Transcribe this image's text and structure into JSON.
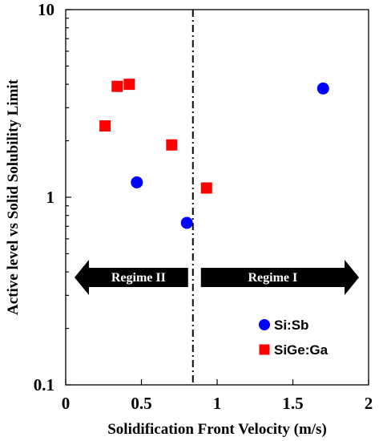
{
  "chart_data": {
    "type": "scatter",
    "xlabel": "Solidification Front Velocity (m/s)",
    "ylabel": "Active level vs Solid Solubility Limit",
    "xlim": [
      0,
      2
    ],
    "ylim": [
      0.1,
      10
    ],
    "yscale": "log",
    "x_ticks": [
      "0",
      "0.5",
      "1",
      "1.5",
      "2"
    ],
    "y_ticks": [
      "0.1",
      "1",
      "10"
    ],
    "grid": false,
    "legend_position": "bottom-right",
    "series": [
      {
        "name": "Si:Sb",
        "marker": "circle",
        "color": "#0000ff",
        "points": [
          {
            "x": 0.47,
            "y": 1.2
          },
          {
            "x": 0.8,
            "y": 0.73
          },
          {
            "x": 1.7,
            "y": 3.8
          }
        ]
      },
      {
        "name": "SiGe:Ga",
        "marker": "square",
        "color": "#ff0000",
        "points": [
          {
            "x": 0.26,
            "y": 2.4
          },
          {
            "x": 0.34,
            "y": 3.9
          },
          {
            "x": 0.42,
            "y": 4.0
          },
          {
            "x": 0.7,
            "y": 1.9
          },
          {
            "x": 0.93,
            "y": 1.12
          }
        ]
      }
    ],
    "annotations": {
      "boundary_x": 0.84,
      "regime_left": "Regime II",
      "regime_right": "Regime I"
    }
  }
}
